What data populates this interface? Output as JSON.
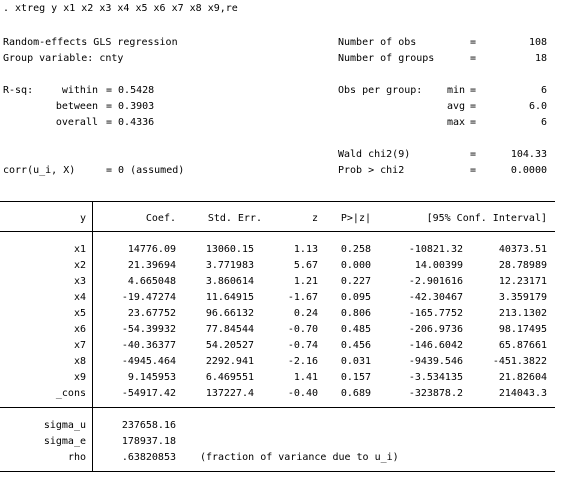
{
  "command": ". xtreg y x1 x2 x3 x4 x5 x6 x7 x8 x9,re",
  "header": {
    "title": "Random-effects GLS regression",
    "group_var": "Group variable: cnty",
    "nobs_label": "Number of obs",
    "nobs_value": "108",
    "ngroups_label": "Number of groups",
    "ngroups_value": "18",
    "rsq_label": "R-sq:",
    "rsq": [
      {
        "label": "within",
        "value": "= 0.5428"
      },
      {
        "label": "between",
        "value": "= 0.3903"
      },
      {
        "label": "overall",
        "value": "= 0.4336"
      }
    ],
    "obs_label": "Obs per group:",
    "obs": [
      {
        "label": "min",
        "value": "6"
      },
      {
        "label": "avg",
        "value": "6.0"
      },
      {
        "label": "max",
        "value": "6"
      }
    ],
    "wald_label": "Wald chi2(9)",
    "wald_value": "104.33",
    "prob_label": "Prob > chi2",
    "prob_value": "0.0000",
    "corr_label": "corr(u_i, X)",
    "corr_value": "= 0 (assumed)",
    "eq": "="
  },
  "table": {
    "headers": {
      "var": "y",
      "coef": "Coef.",
      "se": "Std. Err.",
      "z": "z",
      "p": "P>|z|",
      "ci": "[95% Conf. Interval]"
    },
    "rows": [
      {
        "var": "x1",
        "coef": "14776.09",
        "se": "13060.15",
        "z": "1.13",
        "p": "0.258",
        "lo": "-10821.32",
        "hi": "40373.51"
      },
      {
        "var": "x2",
        "coef": "21.39694",
        "se": "3.771983",
        "z": "5.67",
        "p": "0.000",
        "lo": "14.00399",
        "hi": "28.78989"
      },
      {
        "var": "x3",
        "coef": "4.665048",
        "se": "3.860614",
        "z": "1.21",
        "p": "0.227",
        "lo": "-2.901616",
        "hi": "12.23171"
      },
      {
        "var": "x4",
        "coef": "-19.47274",
        "se": "11.64915",
        "z": "-1.67",
        "p": "0.095",
        "lo": "-42.30467",
        "hi": "3.359179"
      },
      {
        "var": "x5",
        "coef": "23.67752",
        "se": "96.66132",
        "z": "0.24",
        "p": "0.806",
        "lo": "-165.7752",
        "hi": "213.1302"
      },
      {
        "var": "x6",
        "coef": "-54.39932",
        "se": "77.84544",
        "z": "-0.70",
        "p": "0.485",
        "lo": "-206.9736",
        "hi": "98.17495"
      },
      {
        "var": "x7",
        "coef": "-40.36377",
        "se": "54.20527",
        "z": "-0.74",
        "p": "0.456",
        "lo": "-146.6042",
        "hi": "65.87661"
      },
      {
        "var": "x8",
        "coef": "-4945.464",
        "se": "2292.941",
        "z": "-2.16",
        "p": "0.031",
        "lo": "-9439.546",
        "hi": "-451.3822"
      },
      {
        "var": "x9",
        "coef": "9.145953",
        "se": "6.469551",
        "z": "1.41",
        "p": "0.157",
        "lo": "-3.534135",
        "hi": "21.82604"
      },
      {
        "var": "_cons",
        "coef": "-54917.42",
        "se": "137227.4",
        "z": "-0.40",
        "p": "0.689",
        "lo": "-323878.2",
        "hi": "214043.3"
      }
    ],
    "sigma": [
      {
        "var": "sigma_u",
        "value": "237658.16",
        "note": ""
      },
      {
        "var": "sigma_e",
        "value": "178937.18",
        "note": ""
      },
      {
        "var": "rho",
        "value": ".63820853",
        "note": "(fraction of variance due to u_i)"
      }
    ]
  }
}
